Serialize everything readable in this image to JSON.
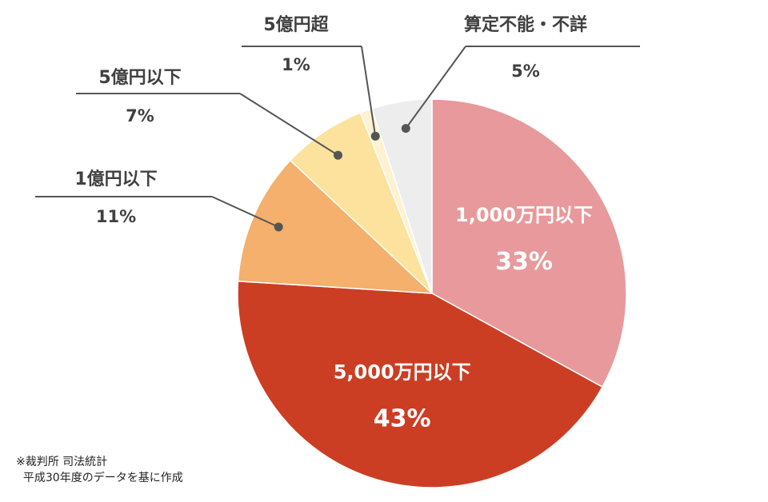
{
  "chart_data": {
    "type": "pie",
    "unit": "%",
    "slices": [
      {
        "label": "1,000万円以下",
        "value": 33,
        "color": "#E8999B"
      },
      {
        "label": "5,000万円以下",
        "value": 43,
        "color": "#CB3E24"
      },
      {
        "label": "1億円以下",
        "value": 11,
        "color": "#F4B06C"
      },
      {
        "label": "5億円以下",
        "value": 7,
        "color": "#FCE29C"
      },
      {
        "label": "5億円超",
        "value": 1,
        "color": "#FEF2D2"
      },
      {
        "label": "算定不能・不詳",
        "value": 5,
        "color": "#EDEDED"
      }
    ],
    "label_style": {
      "inside": [
        "1,000万円以下",
        "5,000万円以下"
      ],
      "outside_with_leader": [
        "1億円以下",
        "5億円以下",
        "5億円超",
        "算定不能・不詳"
      ]
    }
  },
  "source_note": {
    "line1": "※裁判所 司法統計",
    "line2": "  平成30年度のデータを基に作成"
  }
}
